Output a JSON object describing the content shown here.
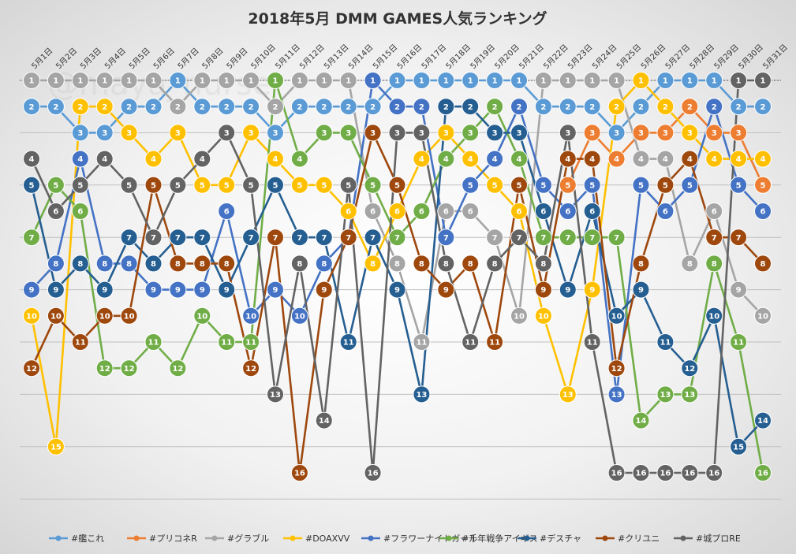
{
  "chart_data": {
    "type": "line",
    "title": "2018年5月 DMM GAMES人気ランキング",
    "xlabel": "",
    "ylabel": "",
    "categories": [
      "5月1日",
      "5月2日",
      "5月3日",
      "5月4日",
      "5月5日",
      "5月6日",
      "5月7日",
      "5月8日",
      "5月9日",
      "5月10日",
      "5月11日",
      "5月12日",
      "5月13日",
      "5月14日",
      "5月15日",
      "5月16日",
      "5月17日",
      "5月18日",
      "5月19日",
      "5月20日",
      "5月21日",
      "5月22日",
      "5月23日",
      "5月24日",
      "5月25日",
      "5月26日",
      "5月27日",
      "5月28日",
      "5月29日",
      "5月30日",
      "5月31日"
    ],
    "ylim": [
      1,
      16
    ],
    "yreversed": true,
    "grid": true,
    "legend_position": "bottom",
    "series": [
      {
        "name": "#艦これ",
        "color": "#5b9bd5",
        "values": [
          2,
          2,
          3,
          3,
          2,
          2,
          1,
          2,
          2,
          2,
          3,
          2,
          2,
          2,
          2,
          1,
          1,
          1,
          1,
          1,
          1,
          2,
          2,
          2,
          3,
          2,
          1,
          1,
          1,
          2,
          2
        ]
      },
      {
        "name": "#プリコネR",
        "color": "#ed7d31",
        "values": [
          null,
          null,
          null,
          null,
          null,
          null,
          null,
          null,
          null,
          null,
          null,
          null,
          null,
          null,
          null,
          null,
          null,
          null,
          null,
          null,
          null,
          null,
          5,
          3,
          4,
          3,
          3,
          2,
          3,
          3,
          5
        ]
      },
      {
        "name": "#グラブル",
        "color": "#a5a5a5",
        "values": [
          1,
          1,
          1,
          1,
          1,
          1,
          2,
          1,
          1,
          1,
          2,
          1,
          1,
          1,
          6,
          8,
          11,
          6,
          6,
          7,
          10,
          1,
          1,
          1,
          1,
          4,
          4,
          8,
          6,
          9,
          10
        ]
      },
      {
        "name": "#DOAXVV",
        "color": "#ffc000",
        "values": [
          10,
          15,
          2,
          2,
          3,
          4,
          3,
          5,
          5,
          3,
          4,
          5,
          5,
          6,
          8,
          6,
          4,
          3,
          4,
          5,
          6,
          10,
          13,
          9,
          2,
          1,
          2,
          3,
          4,
          4,
          4
        ]
      },
      {
        "name": "#フラワーナイトガール",
        "color": "#4472c4",
        "values": [
          9,
          8,
          4,
          8,
          8,
          9,
          9,
          9,
          6,
          10,
          9,
          10,
          8,
          7,
          1,
          2,
          2,
          7,
          5,
          4,
          2,
          5,
          6,
          5,
          13,
          5,
          6,
          5,
          2,
          5,
          6
        ]
      },
      {
        "name": "#千年戦争アイギス",
        "color": "#70ad47",
        "values": [
          7,
          5,
          6,
          12,
          12,
          11,
          12,
          10,
          11,
          11,
          1,
          4,
          3,
          3,
          5,
          7,
          6,
          4,
          3,
          2,
          4,
          7,
          7,
          7,
          7,
          14,
          13,
          13,
          8,
          11,
          16
        ]
      },
      {
        "name": "#デスチャ",
        "color": "#255e91",
        "values": [
          5,
          9,
          8,
          9,
          7,
          8,
          7,
          7,
          9,
          7,
          5,
          7,
          7,
          11,
          7,
          9,
          13,
          2,
          2,
          3,
          3,
          6,
          9,
          6,
          10,
          9,
          11,
          12,
          10,
          15,
          14
        ]
      },
      {
        "name": "#クリユニ",
        "color": "#9e480e",
        "values": [
          12,
          10,
          11,
          10,
          10,
          5,
          8,
          8,
          8,
          12,
          7,
          16,
          9,
          7,
          3,
          5,
          8,
          9,
          8,
          11,
          5,
          9,
          4,
          4,
          12,
          8,
          5,
          4,
          7,
          7,
          8
        ]
      },
      {
        "name": "#城プロRE",
        "color": "#636363",
        "values": [
          4,
          6,
          5,
          4,
          5,
          7,
          5,
          4,
          3,
          5,
          13,
          8,
          14,
          5,
          16,
          3,
          3,
          8,
          11,
          8,
          7,
          8,
          3,
          11,
          16,
          16,
          16,
          16,
          16,
          1,
          1
        ]
      }
    ]
  },
  "watermark": "@maya_nurse"
}
